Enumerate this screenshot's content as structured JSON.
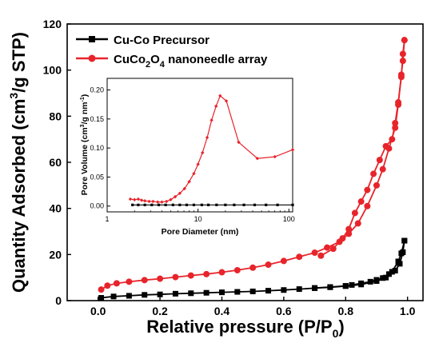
{
  "chart_data": [
    {
      "type": "line",
      "xlabel": "Relative pressure (P/P",
      "xlabel_sub": "0",
      "xlabel_end": ")",
      "ylabel": "Quantity Adsorbed (cm",
      "ylabel_sup": "3",
      "ylabel_end": "/g STP)",
      "xlim": [
        -0.1,
        1.05
      ],
      "ylim": [
        0,
        120
      ],
      "xticks": [
        "0.0",
        "0.2",
        "0.4",
        "0.6",
        "0.8",
        "1.0"
      ],
      "xtick_values": [
        0.0,
        0.2,
        0.4,
        0.6,
        0.8,
        1.0
      ],
      "yticks": [
        "0",
        "20",
        "40",
        "60",
        "80",
        "100",
        "120"
      ],
      "ytick_values": [
        0,
        20,
        40,
        60,
        80,
        100,
        120
      ],
      "legend_position": "top-left",
      "series": [
        {
          "name": "Cu-Co Precursor",
          "color": "#000000",
          "marker": "square",
          "adsorption": [
            [
              0.01,
              1.2
            ],
            [
              0.05,
              1.8
            ],
            [
              0.1,
              2.1
            ],
            [
              0.15,
              2.5
            ],
            [
              0.2,
              2.7
            ],
            [
              0.25,
              3.0
            ],
            [
              0.3,
              3.2
            ],
            [
              0.35,
              3.4
            ],
            [
              0.4,
              3.6
            ],
            [
              0.45,
              3.8
            ],
            [
              0.5,
              4.0
            ],
            [
              0.55,
              4.3
            ],
            [
              0.6,
              4.6
            ],
            [
              0.65,
              5.0
            ],
            [
              0.7,
              5.4
            ],
            [
              0.75,
              5.8
            ],
            [
              0.8,
              6.3
            ],
            [
              0.85,
              7.0
            ],
            [
              0.9,
              8.5
            ],
            [
              0.93,
              10.0
            ],
            [
              0.95,
              12.5
            ],
            [
              0.97,
              17.0
            ],
            [
              0.98,
              20.5
            ],
            [
              0.99,
              26.0
            ]
          ],
          "desorption": [
            [
              0.99,
              26.0
            ],
            [
              0.985,
              21.0
            ],
            [
              0.975,
              16.0
            ],
            [
              0.96,
              13.0
            ],
            [
              0.94,
              11.5
            ],
            [
              0.92,
              9.8
            ],
            [
              0.9,
              9.0
            ],
            [
              0.88,
              8.2
            ],
            [
              0.85,
              7.5
            ],
            [
              0.82,
              6.8
            ],
            [
              0.8,
              6.4
            ],
            [
              0.75,
              5.9
            ],
            [
              0.7,
              5.5
            ]
          ]
        },
        {
          "name": "CuCo2O4 nanoneedle array",
          "name_parts": [
            "CuCo",
            "2",
            "O",
            "4",
            " nanoneedle array"
          ],
          "color": "#e8242b",
          "marker": "circle",
          "adsorption": [
            [
              0.01,
              4.8
            ],
            [
              0.03,
              6.5
            ],
            [
              0.06,
              7.5
            ],
            [
              0.1,
              8.2
            ],
            [
              0.15,
              8.9
            ],
            [
              0.2,
              9.5
            ],
            [
              0.25,
              10.2
            ],
            [
              0.3,
              10.9
            ],
            [
              0.35,
              11.5
            ],
            [
              0.4,
              12.3
            ],
            [
              0.45,
              13.2
            ],
            [
              0.5,
              14.3
            ],
            [
              0.55,
              15.6
            ],
            [
              0.6,
              17.2
            ],
            [
              0.65,
              19.0
            ],
            [
              0.7,
              20.8
            ],
            [
              0.74,
              23.0
            ],
            [
              0.78,
              25.5
            ],
            [
              0.81,
              29.0
            ],
            [
              0.84,
              33.5
            ],
            [
              0.87,
              41.0
            ],
            [
              0.9,
              50.0
            ],
            [
              0.92,
              57.0
            ],
            [
              0.94,
              66.0
            ],
            [
              0.96,
              75.0
            ],
            [
              0.97,
              85.0
            ],
            [
              0.98,
              98.0
            ],
            [
              0.985,
              104.0
            ],
            [
              0.99,
              113.0
            ]
          ],
          "desorption": [
            [
              0.99,
              113.0
            ],
            [
              0.985,
              107.0
            ],
            [
              0.98,
              97.0
            ],
            [
              0.97,
              86.0
            ],
            [
              0.96,
              77.0
            ],
            [
              0.95,
              70.0
            ],
            [
              0.93,
              67.0
            ],
            [
              0.91,
              61.0
            ],
            [
              0.89,
              55.0
            ],
            [
              0.87,
              48.0
            ],
            [
              0.85,
              43.0
            ],
            [
              0.83,
              38.0
            ],
            [
              0.81,
              31.0
            ],
            [
              0.79,
              27.0
            ],
            [
              0.76,
              22.5
            ],
            [
              0.72,
              19.5
            ]
          ]
        }
      ]
    },
    {
      "type": "line",
      "xlabel": "Pore Diameter (nm)",
      "ylabel": "Pore Volume (cm",
      "ylabel_sup": "3",
      "ylabel_end": "/g nm",
      "ylabel_sup2": "-1",
      "ylabel_close": ")",
      "xscale": "log",
      "xlim": [
        1,
        110
      ],
      "ylim": [
        -0.01,
        0.22
      ],
      "xticks": [
        "1",
        "10",
        "100"
      ],
      "xtick_values": [
        1,
        10,
        100
      ],
      "yticks": [
        "0.00",
        "0.05",
        "0.10",
        "0.15",
        "0.20"
      ],
      "ytick_values": [
        0.0,
        0.05,
        0.1,
        0.15,
        0.2
      ],
      "series": [
        {
          "color": "#000000",
          "marker": "square",
          "points": [
            [
              1.9,
              0.002
            ],
            [
              2.2,
              0.002
            ],
            [
              2.6,
              0.002
            ],
            [
              3.1,
              0.002
            ],
            [
              3.7,
              0.002
            ],
            [
              4.4,
              0.002
            ],
            [
              5.3,
              0.002
            ],
            [
              6.3,
              0.002
            ],
            [
              7.5,
              0.002
            ],
            [
              9.0,
              0.002
            ],
            [
              11,
              0.002
            ],
            [
              13,
              0.002
            ],
            [
              16,
              0.002
            ],
            [
              20,
              0.002
            ],
            [
              25,
              0.002
            ],
            [
              32,
              0.002
            ],
            [
              42,
              0.002
            ],
            [
              56,
              0.002
            ],
            [
              75,
              0.002
            ],
            [
              110,
              0.002
            ]
          ]
        },
        {
          "color": "#e8242b",
          "marker": "diamond",
          "points": [
            [
              1.8,
              0.012
            ],
            [
              2.0,
              0.011
            ],
            [
              2.2,
              0.012
            ],
            [
              2.4,
              0.01
            ],
            [
              2.6,
              0.009
            ],
            [
              2.9,
              0.008
            ],
            [
              3.2,
              0.008
            ],
            [
              3.6,
              0.007
            ],
            [
              4.0,
              0.007
            ],
            [
              4.5,
              0.008
            ],
            [
              5.0,
              0.011
            ],
            [
              5.6,
              0.016
            ],
            [
              6.3,
              0.022
            ],
            [
              7.1,
              0.03
            ],
            [
              8.0,
              0.042
            ],
            [
              9.0,
              0.056
            ],
            [
              10.0,
              0.072
            ],
            [
              11.2,
              0.092
            ],
            [
              12.6,
              0.118
            ],
            [
              14.1,
              0.148
            ],
            [
              15.8,
              0.172
            ],
            [
              17.5,
              0.19
            ],
            [
              20.5,
              0.181
            ],
            [
              28,
              0.11
            ],
            [
              45,
              0.082
            ],
            [
              70,
              0.085
            ],
            [
              110,
              0.097
            ]
          ]
        }
      ]
    }
  ]
}
